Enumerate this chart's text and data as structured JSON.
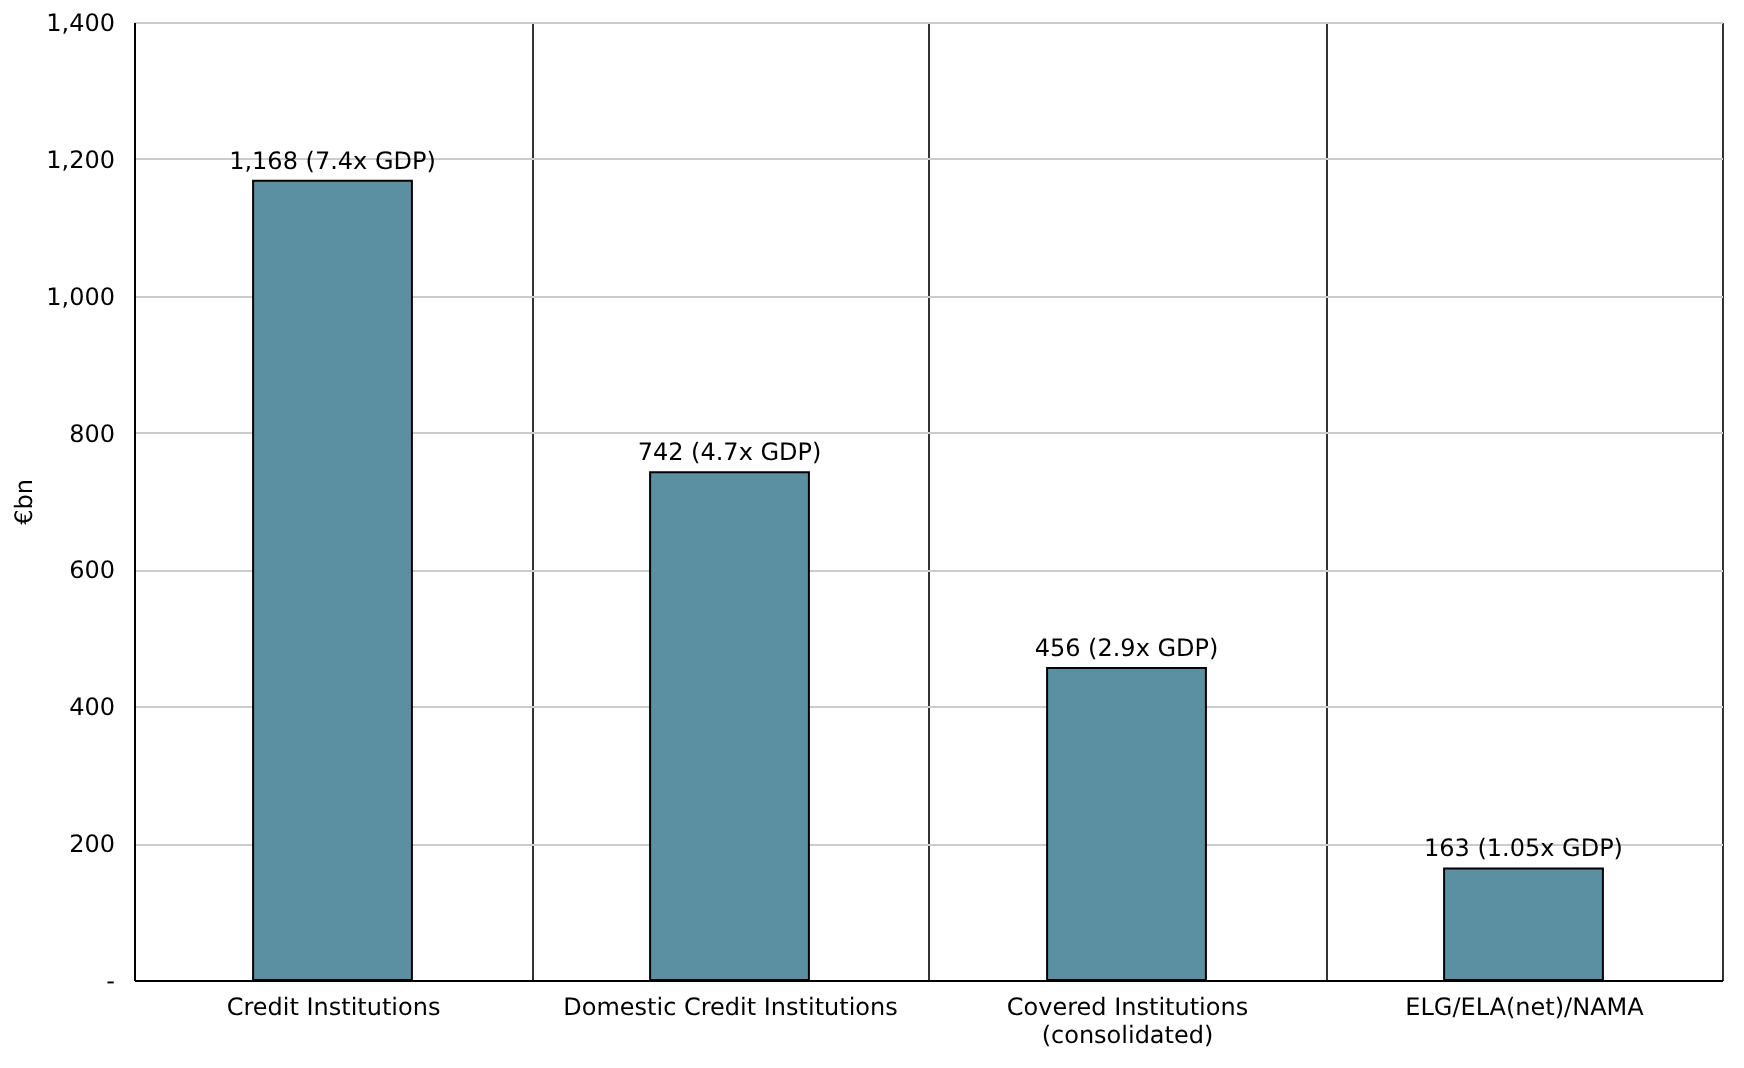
{
  "chart_data": {
    "type": "bar",
    "ylabel": "€bn",
    "categories": [
      "Credit Institutions",
      "Domestic Credit Institutions",
      "Covered Institutions\n(consolidated)",
      "ELG/ELA(net)/NAMA"
    ],
    "values": [
      1168,
      742,
      456,
      163
    ],
    "value_labels": [
      "1,168 (7.4x GDP)",
      "742 (4.7x GDP)",
      "456 (2.9x GDP)",
      "163 (1.05x GDP)"
    ],
    "color": "#5b90a3",
    "ylim": [
      0,
      1400
    ],
    "yticks": [
      {
        "value": 0,
        "label": "-"
      },
      200,
      400,
      600,
      800,
      {
        "value": 1000,
        "label": "1,000"
      },
      {
        "value": 1200,
        "label": "1,200"
      },
      {
        "value": 1400,
        "label": "1,400"
      }
    ],
    "grid": true
  }
}
